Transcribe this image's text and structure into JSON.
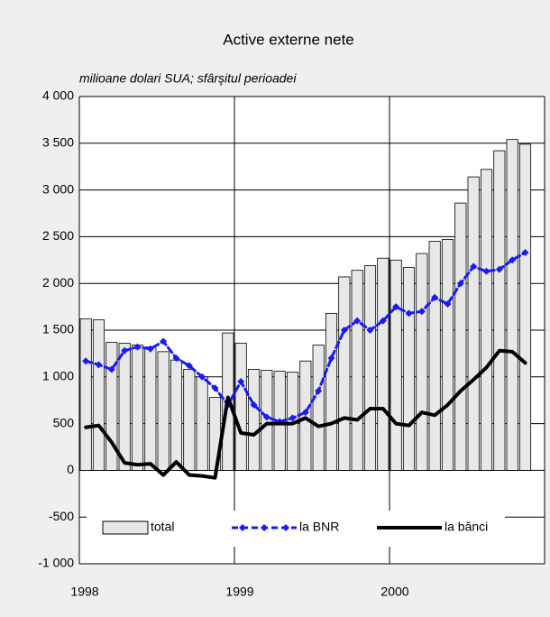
{
  "chart_data": {
    "type": "bar",
    "title": "Active externe nete",
    "subtitle": "milioane dolari SUA; sfârşitul perioadei",
    "categories": [
      "1998",
      null,
      null,
      null,
      null,
      null,
      null,
      null,
      null,
      null,
      null,
      null,
      "1999",
      null,
      null,
      null,
      null,
      null,
      null,
      null,
      null,
      null,
      null,
      null,
      "2000",
      null,
      null,
      null,
      null,
      null,
      null,
      null,
      null,
      null,
      null
    ],
    "series": [
      {
        "name": "total",
        "type": "bar",
        "color": "#e8e8e8",
        "values": [
          1620,
          1610,
          1370,
          1360,
          1340,
          1320,
          1270,
          1180,
          1080,
          1000,
          780,
          1470,
          1360,
          1080,
          1070,
          1060,
          1050,
          1170,
          1340,
          1680,
          2070,
          2140,
          2190,
          2270,
          2250,
          2170,
          2320,
          2450,
          2470,
          2860,
          3140,
          3220,
          3420,
          3540,
          3490
        ]
      },
      {
        "name": "la BNR",
        "type": "line",
        "color": "#1a1aff",
        "values": [
          1170,
          1130,
          1080,
          1280,
          1320,
          1300,
          1380,
          1200,
          1120,
          1000,
          880,
          700,
          950,
          700,
          570,
          520,
          560,
          620,
          850,
          1200,
          1500,
          1600,
          1500,
          1600,
          1750,
          1680,
          1700,
          1850,
          1780,
          2000,
          2180,
          2130,
          2150,
          2250,
          2330
        ]
      },
      {
        "name": "la bănci",
        "type": "line",
        "color": "#000000",
        "values": [
          460,
          480,
          300,
          80,
          60,
          70,
          -50,
          90,
          -50,
          -60,
          -80,
          780,
          400,
          380,
          500,
          500,
          500,
          560,
          470,
          500,
          560,
          540,
          660,
          660,
          500,
          480,
          620,
          590,
          700,
          850,
          970,
          1100,
          1280,
          1270,
          1150
        ]
      }
    ],
    "ylim": [
      -1000,
      4000
    ],
    "yticks": [
      {
        "value": -1000,
        "label": "-1 000"
      },
      -500,
      0,
      500,
      {
        "value": 1000,
        "label": "1 000"
      },
      {
        "value": 1500,
        "label": "1 500"
      },
      {
        "value": 2000,
        "label": "2 000"
      },
      {
        "value": 2500,
        "label": "2 500"
      },
      {
        "value": 3000,
        "label": "3 000"
      },
      {
        "value": 3500,
        "label": "3 500"
      },
      {
        "value": 4000,
        "label": "4 000"
      }
    ],
    "grid": true
  }
}
